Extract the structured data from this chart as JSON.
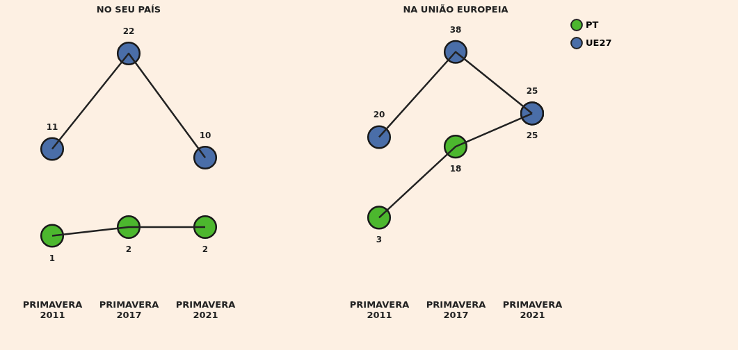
{
  "chart_data": [
    {
      "type": "line",
      "title": "NO SEU PAÍS",
      "categories": [
        "PRIMAVERA 2011",
        "PRIMAVERA 2017",
        "PRIMAVERA 2021"
      ],
      "series": [
        {
          "color": "#4cb72e",
          "values": [
            1,
            2,
            2
          ]
        },
        {
          "color": "#4a6ea8",
          "values": [
            11,
            22,
            10
          ]
        }
      ],
      "data_labels": true,
      "marker": "circle"
    },
    {
      "type": "line",
      "title": "NA UNIÃO EUROPEIA",
      "categories": [
        "PRIMAVERA 2011",
        "PRIMAVERA 2017",
        "PRIMAVERA 2021"
      ],
      "series": [
        {
          "name": "PT",
          "color": "#4cb72e",
          "values": [
            3,
            18,
            25
          ]
        },
        {
          "name": "UE27",
          "color": "#4a6ea8",
          "values": [
            20,
            38,
            25
          ]
        }
      ],
      "data_labels": true,
      "marker": "circle",
      "legend": "top right"
    }
  ]
}
